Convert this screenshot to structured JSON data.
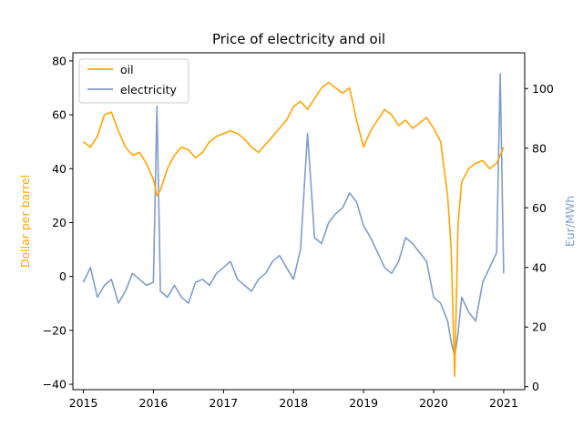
{
  "chart_data": {
    "type": "line",
    "title": "Price of electricity and oil",
    "xlabel": "",
    "x_ticks": [
      "2015",
      "2016",
      "2017",
      "2018",
      "2019",
      "2020",
      "2021"
    ],
    "x_range": [
      2014.85,
      2021.3
    ],
    "y_left": {
      "label": "Dollar per barrel",
      "range": [
        -42,
        83
      ],
      "ticks": [
        -40,
        -20,
        0,
        20,
        40,
        60,
        80
      ],
      "color": "#FFA500"
    },
    "y_right": {
      "label": "Eur/MWh",
      "range": [
        -1,
        112
      ],
      "ticks": [
        0,
        20,
        40,
        60,
        80,
        100
      ],
      "color": "#7F9DC8"
    },
    "legend": {
      "placement": "top-left",
      "entries": [
        "oil",
        "electricity"
      ]
    },
    "series": [
      {
        "name": "oil",
        "axis": "left",
        "color": "#FFA500",
        "x": [
          2015.0,
          2015.1,
          2015.2,
          2015.3,
          2015.4,
          2015.5,
          2015.6,
          2015.7,
          2015.8,
          2015.9,
          2016.0,
          2016.05,
          2016.1,
          2016.2,
          2016.3,
          2016.4,
          2016.5,
          2016.6,
          2016.7,
          2016.8,
          2016.9,
          2017.0,
          2017.1,
          2017.2,
          2017.3,
          2017.4,
          2017.5,
          2017.6,
          2017.7,
          2017.8,
          2017.9,
          2018.0,
          2018.1,
          2018.2,
          2018.3,
          2018.4,
          2018.5,
          2018.6,
          2018.7,
          2018.8,
          2018.9,
          2019.0,
          2019.1,
          2019.2,
          2019.3,
          2019.4,
          2019.5,
          2019.6,
          2019.7,
          2019.8,
          2019.9,
          2020.0,
          2020.1,
          2020.2,
          2020.25,
          2020.3,
          2020.35,
          2020.4,
          2020.5,
          2020.6,
          2020.7,
          2020.8,
          2020.9,
          2021.0
        ],
        "values": [
          50,
          48,
          52,
          60,
          61,
          54,
          48,
          45,
          46,
          42,
          36,
          30,
          32,
          40,
          45,
          48,
          47,
          44,
          46,
          50,
          52,
          53,
          54,
          53,
          51,
          48,
          46,
          49,
          52,
          55,
          58,
          63,
          65,
          62,
          66,
          70,
          72,
          70,
          68,
          70,
          58,
          48,
          54,
          58,
          62,
          60,
          56,
          58,
          55,
          57,
          59,
          55,
          50,
          30,
          10,
          -37,
          20,
          35,
          40,
          42,
          43,
          40,
          42,
          48
        ]
      },
      {
        "name": "electricity",
        "axis": "right",
        "color": "#7F9DC8",
        "x": [
          2015.0,
          2015.1,
          2015.2,
          2015.3,
          2015.4,
          2015.5,
          2015.6,
          2015.7,
          2015.8,
          2015.9,
          2016.0,
          2016.05,
          2016.1,
          2016.2,
          2016.3,
          2016.4,
          2016.5,
          2016.6,
          2016.7,
          2016.8,
          2016.9,
          2017.0,
          2017.1,
          2017.2,
          2017.3,
          2017.4,
          2017.5,
          2017.6,
          2017.7,
          2017.8,
          2017.9,
          2018.0,
          2018.1,
          2018.2,
          2018.3,
          2018.4,
          2018.5,
          2018.6,
          2018.7,
          2018.8,
          2018.9,
          2019.0,
          2019.1,
          2019.2,
          2019.3,
          2019.4,
          2019.5,
          2019.6,
          2019.7,
          2019.8,
          2019.9,
          2020.0,
          2020.1,
          2020.2,
          2020.25,
          2020.3,
          2020.35,
          2020.4,
          2020.5,
          2020.6,
          2020.7,
          2020.8,
          2020.9,
          2020.95,
          2021.0
        ],
        "values": [
          35,
          40,
          30,
          34,
          36,
          28,
          32,
          38,
          36,
          34,
          35,
          94,
          32,
          30,
          34,
          30,
          28,
          35,
          36,
          34,
          38,
          40,
          42,
          36,
          34,
          32,
          36,
          38,
          42,
          44,
          40,
          36,
          46,
          85,
          50,
          48,
          55,
          58,
          60,
          65,
          62,
          54,
          50,
          45,
          40,
          38,
          42,
          50,
          48,
          45,
          42,
          30,
          28,
          22,
          15,
          10,
          18,
          30,
          25,
          22,
          35,
          40,
          45,
          105,
          38
        ]
      }
    ]
  }
}
